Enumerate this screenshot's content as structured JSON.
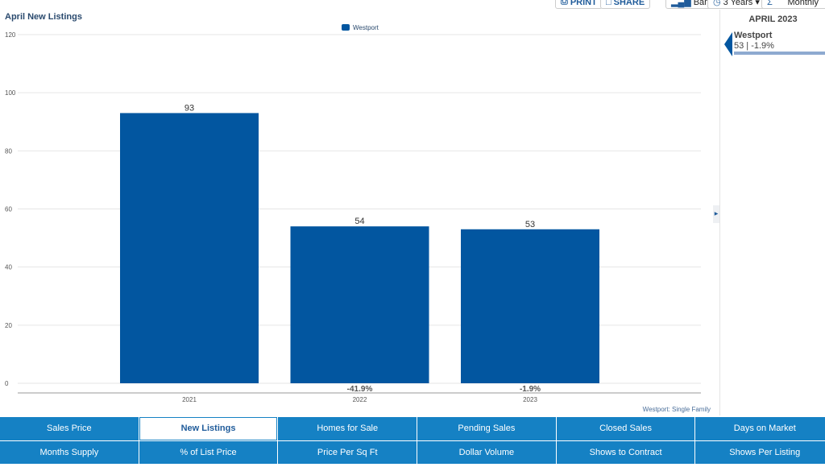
{
  "toolbar": {
    "print": "PRINT",
    "share": "SHARE",
    "chart_type": "Bar",
    "range": "3 Years",
    "period": "Monthly"
  },
  "sidebar": {
    "heading": "APRIL 2023",
    "item": {
      "name": "Westport",
      "value": "53 | -1.9%",
      "bar_fraction": 1.0,
      "color": "#8eaad0"
    }
  },
  "chart_data": {
    "type": "bar",
    "title": "April New Listings",
    "categories": [
      "2021",
      "2022",
      "2023"
    ],
    "series": [
      {
        "name": "Westport",
        "values": [
          93,
          54,
          53
        ],
        "color": "#0256a0"
      }
    ],
    "change_labels": [
      "",
      "-41.9%",
      "-1.9%"
    ],
    "ylim": [
      0,
      120
    ],
    "yticks": [
      0,
      20,
      40,
      60,
      80,
      100,
      120
    ],
    "grid": true,
    "legend": "top-center",
    "footnote": "Westport: Single Family"
  },
  "tabs": [
    "Sales Price",
    "New Listings",
    "Homes for Sale",
    "Pending Sales",
    "Closed Sales",
    "Days on Market",
    "Months Supply",
    "% of List Price",
    "Price Per Sq Ft",
    "Dollar Volume",
    "Shows to Contract",
    "Shows Per Listing"
  ],
  "active_tab": "New Listings"
}
